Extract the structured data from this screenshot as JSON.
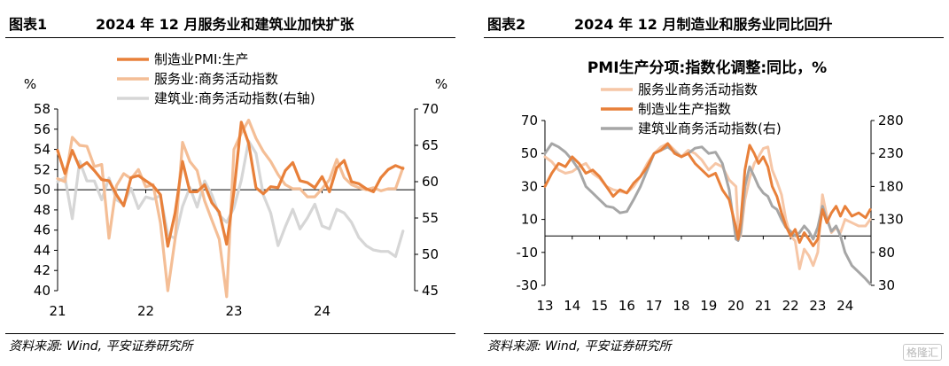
{
  "left": {
    "figure_no": "图表1",
    "title": "2024 年 12 月服务业和建筑业加快扩张",
    "source": "资料来源: Wind, 平安证券研究所"
  },
  "right": {
    "figure_no": "图表2",
    "title": "2024 年 12 月制造业和服务业同比回升",
    "source": "资料来源: Wind, 平安证券研究所"
  },
  "watermark": "格隆汇",
  "chart_data": [
    {
      "type": "line",
      "title": "",
      "y_left_unit": "%",
      "y_right_unit": "%",
      "ylim": [
        40,
        58
      ],
      "ylim_right": [
        45,
        70
      ],
      "yticks": [
        40,
        42,
        44,
        46,
        48,
        50,
        52,
        54,
        56,
        58
      ],
      "yticks_right": [
        45,
        50,
        55,
        60,
        65,
        70
      ],
      "xlim": [
        2021,
        2025.05
      ],
      "xtick_labels": [
        "21",
        "22",
        "23",
        "24"
      ],
      "xtick_positions": [
        2021,
        2022,
        2023,
        2024
      ],
      "reference_line": 50,
      "legend_position": "top-center",
      "colors": {
        "manufacturing": "#E8803A",
        "services": "#F4BE96",
        "construction": "#D6D6D6",
        "axis": "#000000"
      },
      "series": [
        {
          "name": "制造业PMI:生产",
          "axis": "left",
          "x": [
            2021.0,
            2021.083,
            2021.167,
            2021.25,
            2021.333,
            2021.417,
            2021.5,
            2021.583,
            2021.667,
            2021.75,
            2021.833,
            2021.917,
            2022.0,
            2022.083,
            2022.167,
            2022.25,
            2022.333,
            2022.417,
            2022.5,
            2022.583,
            2022.667,
            2022.75,
            2022.833,
            2022.917,
            2023.0,
            2023.083,
            2023.167,
            2023.25,
            2023.333,
            2023.417,
            2023.5,
            2023.583,
            2023.667,
            2023.75,
            2023.833,
            2023.917,
            2024.0,
            2024.083,
            2024.167,
            2024.25,
            2024.333,
            2024.417,
            2024.5,
            2024.583,
            2024.667,
            2024.75,
            2024.833,
            2024.917
          ],
          "values": [
            53.9,
            51.6,
            53.9,
            52.2,
            52.7,
            51.9,
            51.0,
            50.9,
            49.5,
            48.4,
            51.2,
            51.4,
            50.9,
            50.4,
            49.5,
            44.4,
            47.7,
            52.8,
            49.8,
            49.8,
            50.5,
            48.7,
            47.8,
            44.6,
            49.8,
            56.7,
            54.6,
            50.2,
            49.6,
            50.3,
            50.2,
            51.9,
            52.7,
            50.9,
            50.7,
            50.2,
            51.3,
            49.8,
            52.2,
            52.9,
            50.8,
            50.6,
            50.1,
            49.8,
            51.2,
            52.0,
            52.4,
            52.1
          ]
        },
        {
          "name": "服务业:商务活动指数",
          "axis": "left",
          "x": [
            2021.0,
            2021.083,
            2021.167,
            2021.25,
            2021.333,
            2021.417,
            2021.5,
            2021.583,
            2021.667,
            2021.75,
            2021.833,
            2021.917,
            2022.0,
            2022.083,
            2022.167,
            2022.25,
            2022.333,
            2022.417,
            2022.5,
            2022.583,
            2022.667,
            2022.75,
            2022.833,
            2022.917,
            2023.0,
            2023.083,
            2023.167,
            2023.25,
            2023.333,
            2023.417,
            2023.5,
            2023.583,
            2023.667,
            2023.75,
            2023.833,
            2023.917,
            2024.0,
            2024.083,
            2024.167,
            2024.25,
            2024.333,
            2024.417,
            2024.5,
            2024.583,
            2024.667,
            2024.75,
            2024.833,
            2024.917
          ],
          "values": [
            51.1,
            50.8,
            55.2,
            54.4,
            54.3,
            52.3,
            52.5,
            45.2,
            50.4,
            51.6,
            51.1,
            52.0,
            50.3,
            50.5,
            46.7,
            40.0,
            45.1,
            54.7,
            52.8,
            51.9,
            48.9,
            47.0,
            45.1,
            39.4,
            54.0,
            55.6,
            56.9,
            55.1,
            53.8,
            52.8,
            51.5,
            50.5,
            50.1,
            50.1,
            49.3,
            49.3,
            50.1,
            51.0,
            53.0,
            51.2,
            50.5,
            50.2,
            50.0,
            50.2,
            49.9,
            50.1,
            50.1,
            52.2
          ]
        },
        {
          "name": "建筑业:商务活动指数(右轴)",
          "axis": "right",
          "x": [
            2021.0,
            2021.083,
            2021.167,
            2021.25,
            2021.333,
            2021.417,
            2021.5,
            2021.583,
            2021.667,
            2021.75,
            2021.833,
            2021.917,
            2022.0,
            2022.083,
            2022.167,
            2022.25,
            2022.333,
            2022.417,
            2022.5,
            2022.583,
            2022.667,
            2022.75,
            2022.833,
            2022.917,
            2023.0,
            2023.083,
            2023.167,
            2023.25,
            2023.333,
            2023.417,
            2023.5,
            2023.583,
            2023.667,
            2023.75,
            2023.833,
            2023.917,
            2024.0,
            2024.083,
            2024.167,
            2024.25,
            2024.333,
            2024.417,
            2024.5,
            2024.583,
            2024.667,
            2024.75,
            2024.833,
            2024.917
          ],
          "values": [
            60.0,
            60.6,
            54.9,
            62.8,
            60.1,
            60.1,
            57.5,
            60.5,
            57.5,
            56.9,
            59.1,
            56.3,
            57.9,
            57.6,
            58.1,
            52.7,
            52.2,
            56.6,
            59.2,
            56.5,
            60.1,
            58.2,
            55.4,
            54.4,
            56.4,
            60.2,
            65.6,
            63.9,
            58.2,
            55.7,
            51.2,
            53.8,
            56.2,
            53.5,
            55.0,
            56.9,
            53.9,
            53.5,
            56.2,
            55.7,
            54.4,
            52.3,
            51.2,
            50.6,
            50.4,
            50.4,
            49.7,
            53.2
          ]
        }
      ]
    },
    {
      "type": "line",
      "title": "PMI生产分项:指数化调整:同比，%",
      "ylim": [
        -30,
        70
      ],
      "ylim_right": [
        30,
        280
      ],
      "yticks": [
        -30,
        -10,
        10,
        30,
        50,
        70
      ],
      "yticks_right": [
        30,
        80,
        130,
        180,
        230,
        280
      ],
      "xlim": [
        2013,
        2024.95
      ],
      "xtick_labels": [
        "13",
        "14",
        "15",
        "16",
        "17",
        "18",
        "19",
        "20",
        "21",
        "22",
        "23",
        "24"
      ],
      "xtick_positions": [
        2013,
        2014,
        2015,
        2016,
        2017,
        2018,
        2019,
        2020,
        2021,
        2022,
        2023,
        2024
      ],
      "reference_line": 0,
      "legend_position": "top-center",
      "colors": {
        "services": "#F6C6A6",
        "manufacturing": "#E8803A",
        "construction": "#A6A6A6",
        "axis": "#000000"
      },
      "series": [
        {
          "name": "服务业商务活动指数",
          "axis": "left",
          "x": [
            2013.0,
            2013.25,
            2013.5,
            2013.75,
            2014.0,
            2014.25,
            2014.5,
            2014.75,
            2015.0,
            2015.25,
            2015.5,
            2015.75,
            2016.0,
            2016.25,
            2016.5,
            2016.75,
            2017.0,
            2017.25,
            2017.5,
            2017.75,
            2018.0,
            2018.25,
            2018.5,
            2018.75,
            2019.0,
            2019.25,
            2019.5,
            2019.75,
            2020.0,
            2020.08,
            2020.17,
            2020.33,
            2020.5,
            2020.67,
            2020.83,
            2021.0,
            2021.17,
            2021.33,
            2021.5,
            2021.67,
            2021.83,
            2022.0,
            2022.17,
            2022.33,
            2022.5,
            2022.67,
            2022.83,
            2023.0,
            2023.17,
            2023.33,
            2023.5,
            2023.67,
            2023.83,
            2024.0,
            2024.25,
            2024.5,
            2024.75,
            2024.92
          ],
          "values": [
            48,
            45,
            40,
            38,
            39,
            42,
            44,
            38,
            35,
            30,
            28,
            27,
            26,
            30,
            36,
            44,
            50,
            54,
            56,
            52,
            48,
            52,
            50,
            46,
            40,
            44,
            42,
            34,
            30,
            5,
            0,
            22,
            35,
            44,
            48,
            53,
            54,
            40,
            33,
            25,
            10,
            0,
            -3,
            -20,
            -8,
            -12,
            -18,
            -10,
            25,
            12,
            2,
            5,
            2,
            10,
            8,
            6,
            6,
            10
          ]
        },
        {
          "name": "制造业生产指数",
          "axis": "left",
          "x": [
            2013.0,
            2013.25,
            2013.5,
            2013.75,
            2014.0,
            2014.25,
            2014.5,
            2014.75,
            2015.0,
            2015.25,
            2015.5,
            2015.75,
            2016.0,
            2016.25,
            2016.5,
            2016.75,
            2017.0,
            2017.25,
            2017.5,
            2017.75,
            2018.0,
            2018.25,
            2018.5,
            2018.75,
            2019.0,
            2019.25,
            2019.5,
            2019.75,
            2020.0,
            2020.08,
            2020.17,
            2020.33,
            2020.5,
            2020.67,
            2020.83,
            2021.0,
            2021.17,
            2021.33,
            2021.5,
            2021.67,
            2021.83,
            2022.0,
            2022.17,
            2022.33,
            2022.5,
            2022.67,
            2022.83,
            2023.0,
            2023.17,
            2023.33,
            2023.5,
            2023.67,
            2023.83,
            2024.0,
            2024.25,
            2024.5,
            2024.75,
            2024.92
          ],
          "values": [
            30,
            38,
            44,
            42,
            48,
            44,
            38,
            40,
            36,
            30,
            24,
            28,
            26,
            32,
            36,
            42,
            50,
            52,
            56,
            50,
            48,
            50,
            44,
            40,
            36,
            38,
            28,
            22,
            5,
            -2,
            8,
            40,
            55,
            50,
            44,
            48,
            42,
            30,
            24,
            14,
            6,
            0,
            4,
            -4,
            2,
            -2,
            -6,
            -2,
            16,
            8,
            14,
            18,
            12,
            18,
            12,
            14,
            11,
            16
          ]
        },
        {
          "name": "建筑业商务活动指数(右)",
          "axis": "right",
          "x": [
            2013.0,
            2013.25,
            2013.5,
            2013.75,
            2014.0,
            2014.25,
            2014.5,
            2014.75,
            2015.0,
            2015.25,
            2015.5,
            2015.75,
            2016.0,
            2016.25,
            2016.5,
            2016.75,
            2017.0,
            2017.25,
            2017.5,
            2017.75,
            2018.0,
            2018.25,
            2018.5,
            2018.75,
            2019.0,
            2019.25,
            2019.5,
            2019.75,
            2020.0,
            2020.08,
            2020.17,
            2020.33,
            2020.5,
            2020.67,
            2020.83,
            2021.0,
            2021.17,
            2021.33,
            2021.5,
            2021.67,
            2021.83,
            2022.0,
            2022.17,
            2022.33,
            2022.5,
            2022.67,
            2022.83,
            2023.0,
            2023.17,
            2023.33,
            2023.5,
            2023.67,
            2023.83,
            2024.0,
            2024.25,
            2024.5,
            2024.75,
            2024.92
          ],
          "values": [
            230,
            245,
            240,
            232,
            220,
            205,
            180,
            170,
            160,
            150,
            148,
            140,
            142,
            160,
            180,
            205,
            230,
            235,
            240,
            232,
            225,
            230,
            238,
            240,
            230,
            232,
            215,
            175,
            100,
            98,
            110,
            180,
            210,
            195,
            180,
            170,
            165,
            150,
            145,
            130,
            118,
            112,
            105,
            110,
            120,
            112,
            100,
            118,
            150,
            130,
            112,
            120,
            105,
            80,
            60,
            50,
            40,
            32
          ]
        }
      ]
    }
  ]
}
